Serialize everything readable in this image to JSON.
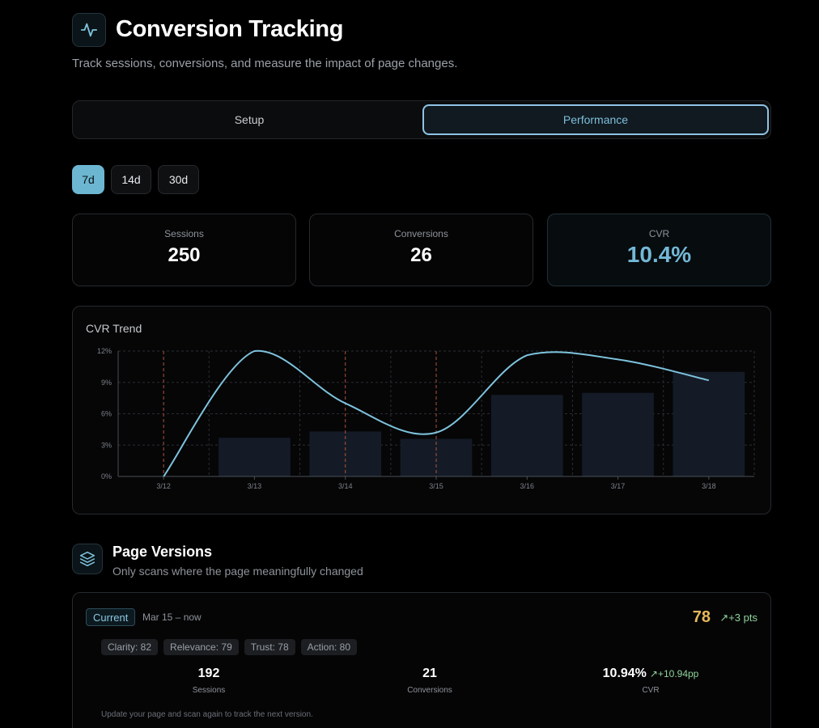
{
  "header": {
    "icon": "activity-icon",
    "title": "Conversion Tracking",
    "subtitle": "Track sessions, conversions, and measure the impact of page changes."
  },
  "tabs": [
    {
      "label": "Setup",
      "active": false
    },
    {
      "label": "Performance",
      "active": true
    }
  ],
  "ranges": [
    {
      "label": "7d",
      "active": true
    },
    {
      "label": "14d",
      "active": false
    },
    {
      "label": "30d",
      "active": false
    }
  ],
  "stats": {
    "sessions": {
      "label": "Sessions",
      "value": "250"
    },
    "conversions": {
      "label": "Conversions",
      "value": "26"
    },
    "cvr": {
      "label": "CVR",
      "value": "10.4%"
    }
  },
  "colors": {
    "accent": "#73b8d6",
    "line": "#7ec3dd",
    "bar": "#141b26",
    "marker": "#b1533e",
    "score": "#e6b85a",
    "positive": "#8fd39a"
  },
  "chart_data": {
    "type": "line",
    "title": "CVR Trend",
    "categories": [
      "3/12",
      "3/13",
      "3/14",
      "3/15",
      "3/16",
      "3/17",
      "3/18"
    ],
    "yticks": [
      "0%",
      "3%",
      "6%",
      "9%",
      "12%"
    ],
    "ylim": [
      0,
      12
    ],
    "series": [
      {
        "name": "CVR",
        "type": "line",
        "values": [
          0,
          12,
          7,
          4.2,
          11.6,
          11.2,
          9.2
        ]
      },
      {
        "name": "Sessions",
        "type": "bar",
        "values": [
          0,
          3.7,
          4.3,
          3.6,
          7.8,
          8.0,
          10.0
        ]
      }
    ],
    "change_markers": [
      "3/12",
      "3/14",
      "3/15"
    ],
    "grid": true
  },
  "page_versions": {
    "icon": "layers-icon",
    "title": "Page Versions",
    "subtitle": "Only scans where the page meaningfully changed",
    "current": {
      "badge": "Current",
      "date_range": "Mar 15 – now",
      "score": "78",
      "score_delta": "+3 pts",
      "tags": [
        "Clarity: 82",
        "Relevance: 79",
        "Trust: 78",
        "Action: 80"
      ],
      "sessions": {
        "value": "192",
        "label": "Sessions"
      },
      "conversions": {
        "value": "21",
        "label": "Conversions"
      },
      "cvr": {
        "value": "10.94%",
        "delta": "+10.94pp",
        "label": "CVR"
      },
      "note": "Update your page and scan again to track the next version."
    }
  }
}
